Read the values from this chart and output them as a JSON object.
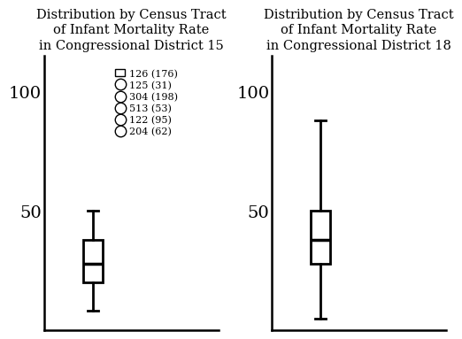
{
  "title_15": "Distribution by Census Tract\nof Infant Mortality Rate\nin Congressional District 15",
  "title_18": "Distribution by Census Tract\nof Infant Mortality Rate\nin Congressional District 18",
  "box_15": {
    "whisker_low": 8,
    "q1": 20,
    "median": 28,
    "q3": 38,
    "whisker_high": 50
  },
  "box_18": {
    "whisker_low": 5,
    "q1": 28,
    "median": 38,
    "q3": 50,
    "whisker_high": 88
  },
  "ylim": [
    0,
    115
  ],
  "yticks": [
    50,
    100
  ],
  "legend_items": [
    {
      "marker": "s",
      "label": "126 (176)"
    },
    {
      "marker": "o",
      "label": "125 (31)"
    },
    {
      "marker": "o",
      "label": "304 (198)"
    },
    {
      "marker": "o",
      "label": "513 (53)"
    },
    {
      "marker": "o",
      "label": "122 (95)"
    },
    {
      "marker": "o",
      "label": "204 (62)"
    }
  ],
  "box_width": 0.28,
  "linewidth": 2.0,
  "title_fontsize": 10.5,
  "tick_fontsize": 14,
  "legend_fontsize": 8,
  "background_color": "white"
}
